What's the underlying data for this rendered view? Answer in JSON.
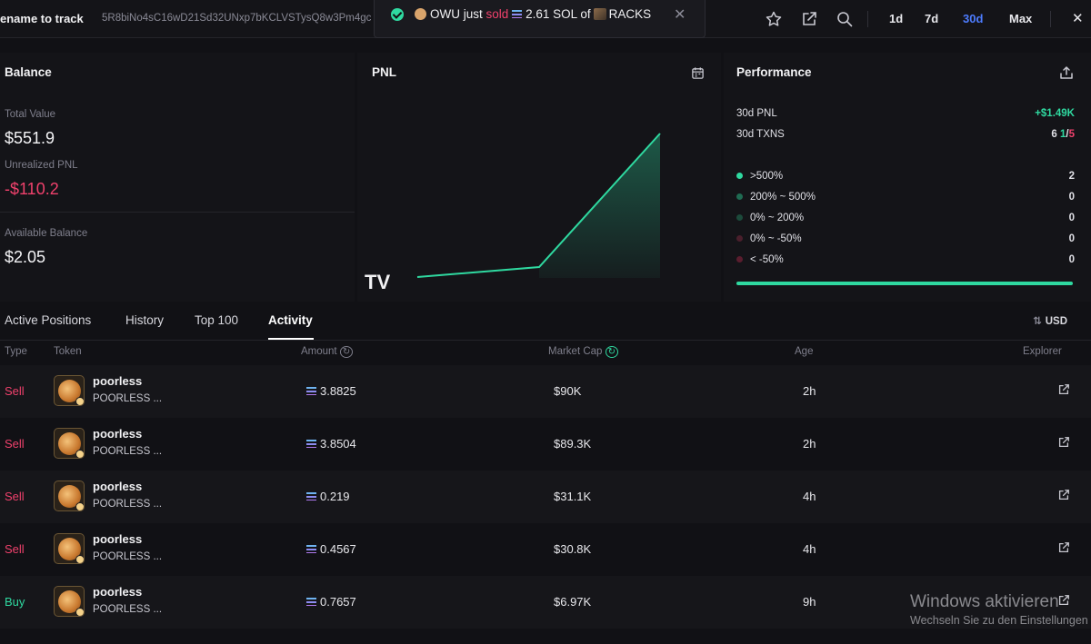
{
  "header": {
    "rename_label": "ename to track",
    "address": "5R8biNo4sC16wD21Sd32UNxp7bKCLVSTysQ8w3Pm4gc",
    "ranges": [
      "1d",
      "7d",
      "30d",
      "Max"
    ],
    "active_range": "30d"
  },
  "toast": {
    "prefix": "OWU just",
    "action": "sold",
    "amount": "2.61 SOL of",
    "token": "RACKS"
  },
  "balance": {
    "title": "Balance",
    "total_value_label": "Total Value",
    "total_value": "$551.9",
    "unrealized_label": "Unrealized PNL",
    "unrealized_value": "-$110.2",
    "available_label": "Available Balance",
    "available_value": "$2.05"
  },
  "pnl": {
    "title": "PNL",
    "logo_text": "TV"
  },
  "performance": {
    "title": "Performance",
    "pnl_label": "30d PNL",
    "pnl_value": "+$1.49K",
    "txns_label": "30d TXNS",
    "txns_total": "6",
    "txns_wins": "1",
    "txns_sep": "/",
    "txns_losses": "5",
    "buckets": [
      {
        "label": ">500%",
        "count": "2",
        "color": "#2fd9a0"
      },
      {
        "label": "200% ~ 500%",
        "count": "0",
        "color": "#1f6b52"
      },
      {
        "label": "0% ~ 200%",
        "count": "0",
        "color": "#1c4a3b"
      },
      {
        "label": "0% ~ -50%",
        "count": "0",
        "color": "#4a1f2c"
      },
      {
        "label": "< -50%",
        "count": "0",
        "color": "#5a1d2e"
      }
    ],
    "win_ratio": 1.0
  },
  "tabs": {
    "items": [
      "Active Positions",
      "History",
      "Top 100",
      "Activity"
    ],
    "active": "Activity",
    "currency": "USD"
  },
  "table": {
    "columns": [
      "Type",
      "Token",
      "Amount",
      "Market Cap",
      "Age",
      "Explorer"
    ],
    "rows": [
      {
        "type": "Sell",
        "name": "poorless",
        "symbol": "POORLESS ...",
        "amount": "3.8825",
        "mcap": "$90K",
        "age": "2h"
      },
      {
        "type": "Sell",
        "name": "poorless",
        "symbol": "POORLESS ...",
        "amount": "3.8504",
        "mcap": "$89.3K",
        "age": "2h"
      },
      {
        "type": "Sell",
        "name": "poorless",
        "symbol": "POORLESS ...",
        "amount": "0.219",
        "mcap": "$31.1K",
        "age": "4h"
      },
      {
        "type": "Sell",
        "name": "poorless",
        "symbol": "POORLESS ...",
        "amount": "0.4567",
        "mcap": "$30.8K",
        "age": "4h"
      },
      {
        "type": "Buy",
        "name": "poorless",
        "symbol": "POORLESS ...",
        "amount": "0.7657",
        "mcap": "$6.97K",
        "age": "9h"
      }
    ]
  },
  "watermark": {
    "line1": "Windows aktivieren",
    "line2": "Wechseln Sie zu den Einstellungen"
  },
  "colors": {
    "accent": "#4d7cfe",
    "positive": "#2fd9a0",
    "negative": "#f0416c"
  }
}
